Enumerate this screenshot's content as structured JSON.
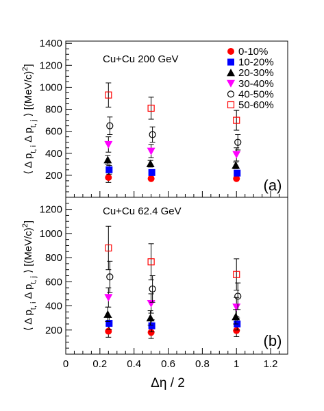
{
  "figure": {
    "x_axis_label": "Δη / 2",
    "x_ticks": [
      "0",
      "0.2",
      "0.4",
      "0.6",
      "0.8",
      "1",
      "1.2"
    ]
  },
  "legend": [
    {
      "label": "0-10%",
      "marker": "filled-circle",
      "color": "#ff0000"
    },
    {
      "label": "10-20%",
      "marker": "filled-square",
      "color": "#0000ff"
    },
    {
      "label": "20-30%",
      "marker": "filled-triangle-up",
      "color": "#000000"
    },
    {
      "label": "30-40%",
      "marker": "filled-triangle-down",
      "color": "#ff00ff"
    },
    {
      "label": "40-50%",
      "marker": "open-circle",
      "color": "#000000"
    },
    {
      "label": "50-60%",
      "marker": "open-square",
      "color": "#ff0000"
    }
  ],
  "chart_data": [
    {
      "type": "scatter",
      "panel": "(a)",
      "title": "Cu+Cu 200 GeV",
      "ylabel": "⟨ Δ p_t,i Δ p_t,j ⟩ [(MeV/c)²]",
      "xlabel": "",
      "xlim": [
        0,
        1.3
      ],
      "ylim": [
        0,
        1420
      ],
      "y_ticks": [
        200,
        400,
        600,
        800,
        1000,
        1200,
        1400
      ],
      "series": [
        {
          "name": "0-10%",
          "x": [
            0.25,
            0.5,
            1.0
          ],
          "y": [
            180,
            170,
            170
          ],
          "err": [
            45,
            0,
            0
          ]
        },
        {
          "name": "10-20%",
          "x": [
            0.25,
            0.5,
            1.0
          ],
          "y": [
            250,
            225,
            220
          ],
          "err": [
            40,
            0,
            0
          ]
        },
        {
          "name": "20-30%",
          "x": [
            0.25,
            0.5,
            1.0
          ],
          "y": [
            340,
            305,
            290
          ],
          "err": [
            40,
            30,
            30
          ]
        },
        {
          "name": "30-40%",
          "x": [
            0.25,
            0.5,
            1.0
          ],
          "y": [
            480,
            420,
            390
          ],
          "err": [
            70,
            60,
            60
          ]
        },
        {
          "name": "40-50%",
          "x": [
            0.25,
            0.5,
            1.0
          ],
          "y": [
            650,
            570,
            500
          ],
          "err": [
            80,
            70,
            70
          ]
        },
        {
          "name": "50-60%",
          "x": [
            0.25,
            0.5,
            1.0
          ],
          "y": [
            930,
            810,
            700
          ],
          "err": [
            110,
            100,
            90
          ]
        }
      ]
    },
    {
      "type": "scatter",
      "panel": "(b)",
      "title": "Cu+Cu 62.4 GeV",
      "ylabel": "⟨ Δ p_t,i Δ p_t,j ⟩ [(MeV/c)²]",
      "xlabel": "Δη / 2",
      "xlim": [
        0,
        1.3
      ],
      "ylim": [
        0,
        1300
      ],
      "y_ticks": [
        200,
        400,
        600,
        800,
        1000,
        1200
      ],
      "series": [
        {
          "name": "0-10%",
          "x": [
            0.25,
            0.5,
            1.0
          ],
          "y": [
            190,
            180,
            195
          ],
          "err": [
            50,
            50,
            50
          ]
        },
        {
          "name": "10-20%",
          "x": [
            0.25,
            0.5,
            1.0
          ],
          "y": [
            255,
            235,
            250
          ],
          "err": [
            50,
            50,
            50
          ]
        },
        {
          "name": "20-30%",
          "x": [
            0.25,
            0.5,
            1.0
          ],
          "y": [
            330,
            300,
            310
          ],
          "err": [
            60,
            60,
            60
          ]
        },
        {
          "name": "30-40%",
          "x": [
            0.25,
            0.5,
            1.0
          ],
          "y": [
            470,
            420,
            390
          ],
          "err": [
            80,
            80,
            80
          ]
        },
        {
          "name": "40-50%",
          "x": [
            0.25,
            0.5,
            1.0
          ],
          "y": [
            640,
            540,
            480
          ],
          "err": [
            130,
            110,
            110
          ]
        },
        {
          "name": "50-60%",
          "x": [
            0.25,
            0.5,
            1.0
          ],
          "y": [
            880,
            765,
            660
          ],
          "err": [
            180,
            150,
            130
          ]
        }
      ]
    }
  ]
}
